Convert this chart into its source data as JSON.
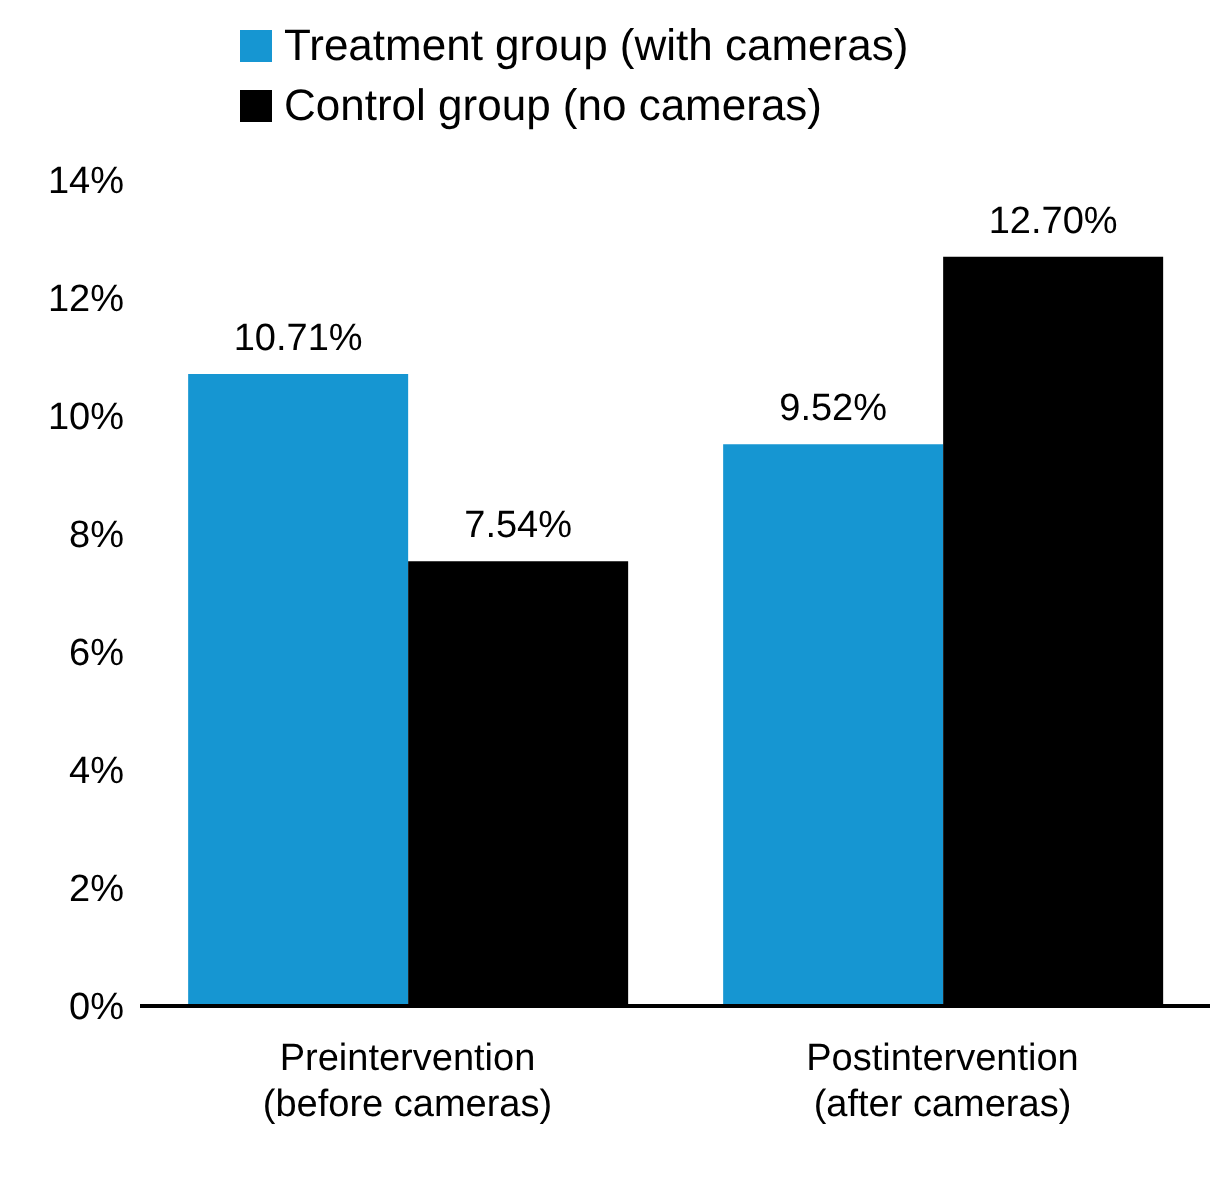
{
  "chart_data": {
    "type": "bar",
    "categories": [
      "Preintervention\n(before cameras)",
      "Postintervention\n(after cameras)"
    ],
    "series": [
      {
        "name": "Treatment group (with cameras)",
        "color": "#1696d2",
        "values": [
          10.71,
          9.52
        ],
        "value_labels": [
          "10.71%",
          "9.52%"
        ]
      },
      {
        "name": "Control group (no cameras)",
        "color": "#000000",
        "values": [
          7.54,
          12.7
        ],
        "value_labels": [
          "7.54%",
          "12.70%"
        ]
      }
    ],
    "ylim": [
      0,
      14
    ],
    "yticks": [
      {
        "value": 0,
        "label": "0%"
      },
      {
        "value": 2,
        "label": "2%"
      },
      {
        "value": 4,
        "label": "4%"
      },
      {
        "value": 6,
        "label": "6%"
      },
      {
        "value": 8,
        "label": "8%"
      },
      {
        "value": 10,
        "label": "10%"
      },
      {
        "value": 12,
        "label": "12%"
      },
      {
        "value": 14,
        "label": "14%"
      }
    ],
    "grid": false,
    "legend": "top left"
  }
}
